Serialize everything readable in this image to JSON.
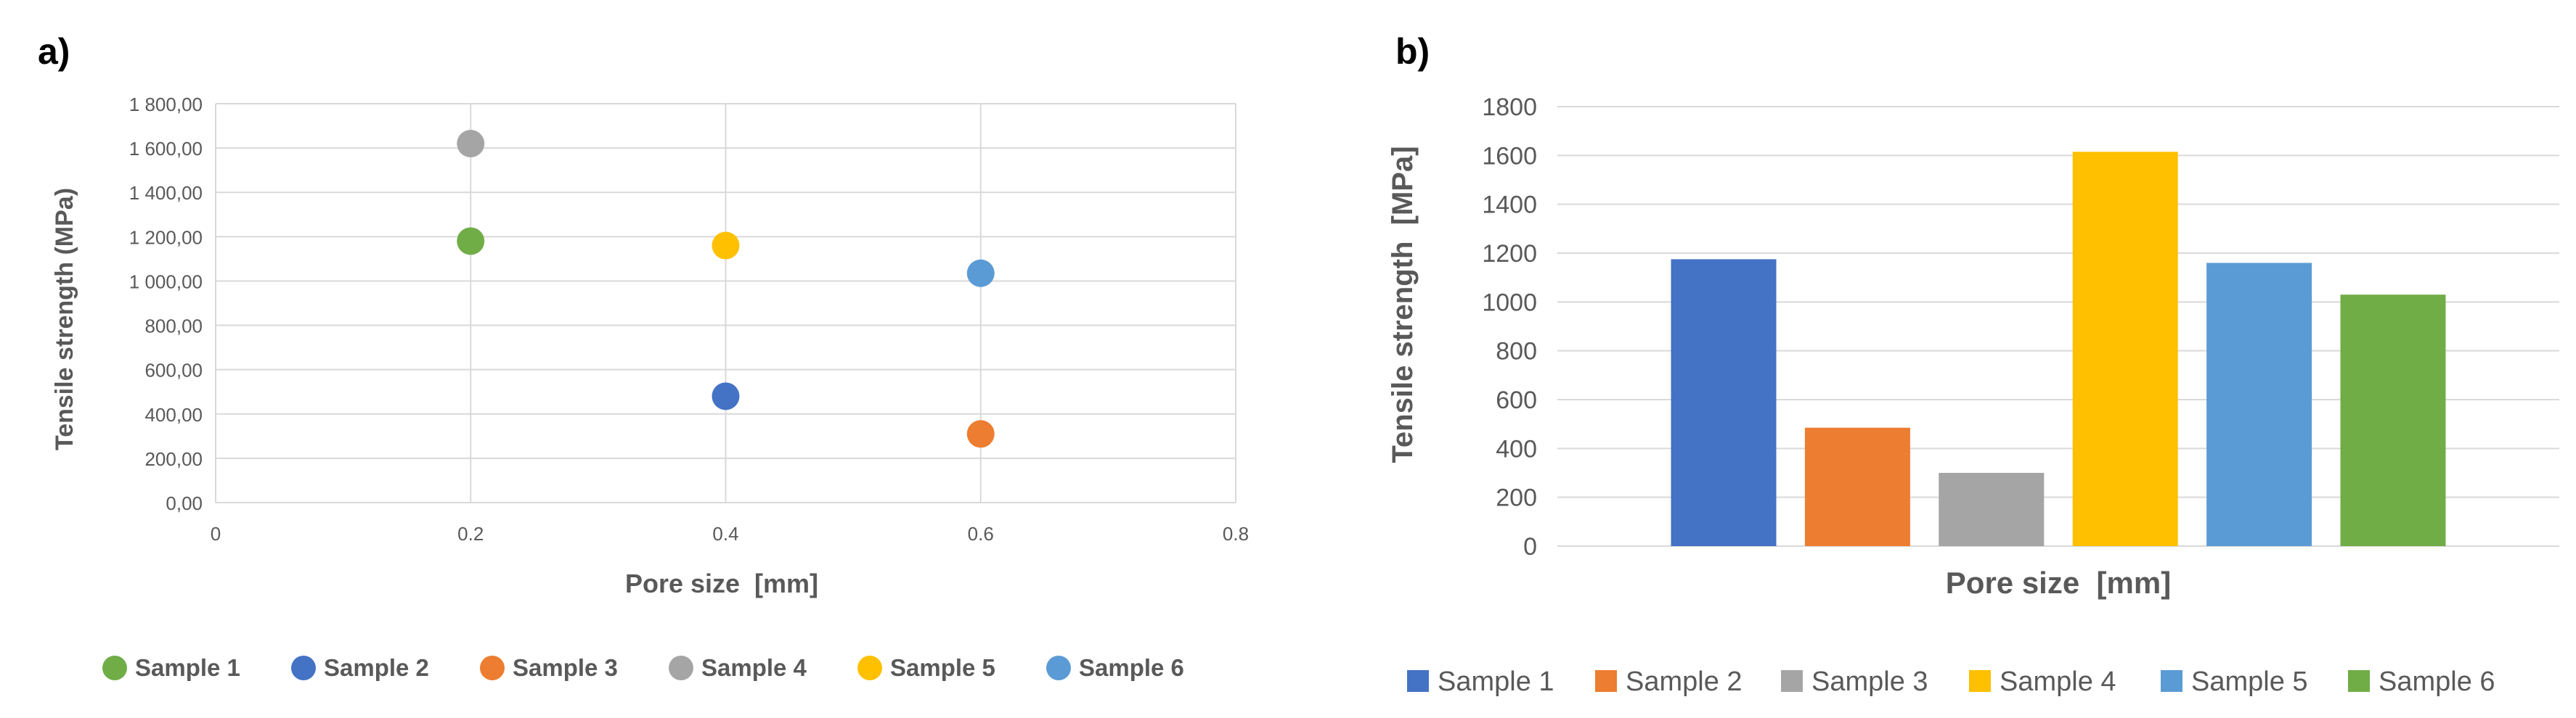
{
  "panel_labels": {
    "a": "a)",
    "b": "b)"
  },
  "chart_data": [
    {
      "type": "scatter",
      "panel": "a)",
      "title": "",
      "xlabel": "Pore size  [mm]",
      "ylabel": "Tensile strength (MPa)",
      "xlim": [
        0,
        0.8
      ],
      "ylim": [
        0,
        1800
      ],
      "x_ticks": [
        0,
        0.2,
        0.4,
        0.6,
        0.8
      ],
      "x_tick_labels": [
        "0",
        "0.2",
        "0.4",
        "0.6",
        "0.8"
      ],
      "y_ticks": [
        0,
        200,
        400,
        600,
        800,
        1000,
        1200,
        1400,
        1600,
        1800
      ],
      "y_tick_labels": [
        "0,00",
        "200,00",
        "400,00",
        "600,00",
        "800,00",
        "1 000,00",
        "1 200,00",
        "1 400,00",
        "1 600,00",
        "1 800,00"
      ],
      "grid": true,
      "legend_position": "bottom",
      "series": [
        {
          "name": "Sample 1",
          "color": "#70AD47",
          "x": 0.2,
          "y": 1180
        },
        {
          "name": "Sample 2",
          "color": "#4472C4",
          "x": 0.4,
          "y": 480
        },
        {
          "name": "Sample 3",
          "color": "#ED7D31",
          "x": 0.6,
          "y": 310
        },
        {
          "name": "Sample 4",
          "color": "#A5A5A5",
          "x": 0.2,
          "y": 1620
        },
        {
          "name": "Sample 5",
          "color": "#FFC000",
          "x": 0.4,
          "y": 1160
        },
        {
          "name": "Sample 6",
          "color": "#5B9BD5",
          "x": 0.6,
          "y": 1035
        }
      ]
    },
    {
      "type": "bar",
      "panel": "b)",
      "title": "",
      "xlabel": "Pore size  [mm]",
      "ylabel": "Tensile strength  [MPa]",
      "ylim": [
        0,
        1800
      ],
      "y_ticks": [
        0,
        200,
        400,
        600,
        800,
        1000,
        1200,
        1400,
        1600,
        1800
      ],
      "y_tick_labels": [
        "0",
        "200",
        "400",
        "600",
        "800",
        "1000",
        "1200",
        "1400",
        "1600",
        "1800"
      ],
      "grid": true,
      "legend_position": "bottom",
      "series": [
        {
          "name": "Sample 1",
          "color": "#4472C4",
          "value": 1175
        },
        {
          "name": "Sample 2",
          "color": "#ED7D31",
          "value": 485
        },
        {
          "name": "Sample 3",
          "color": "#A5A5A5",
          "value": 300
        },
        {
          "name": "Sample 4",
          "color": "#FFC000",
          "value": 1615
        },
        {
          "name": "Sample 5",
          "color": "#5B9BD5",
          "value": 1160
        },
        {
          "name": "Sample 6",
          "color": "#70AD47",
          "value": 1030
        }
      ]
    }
  ]
}
